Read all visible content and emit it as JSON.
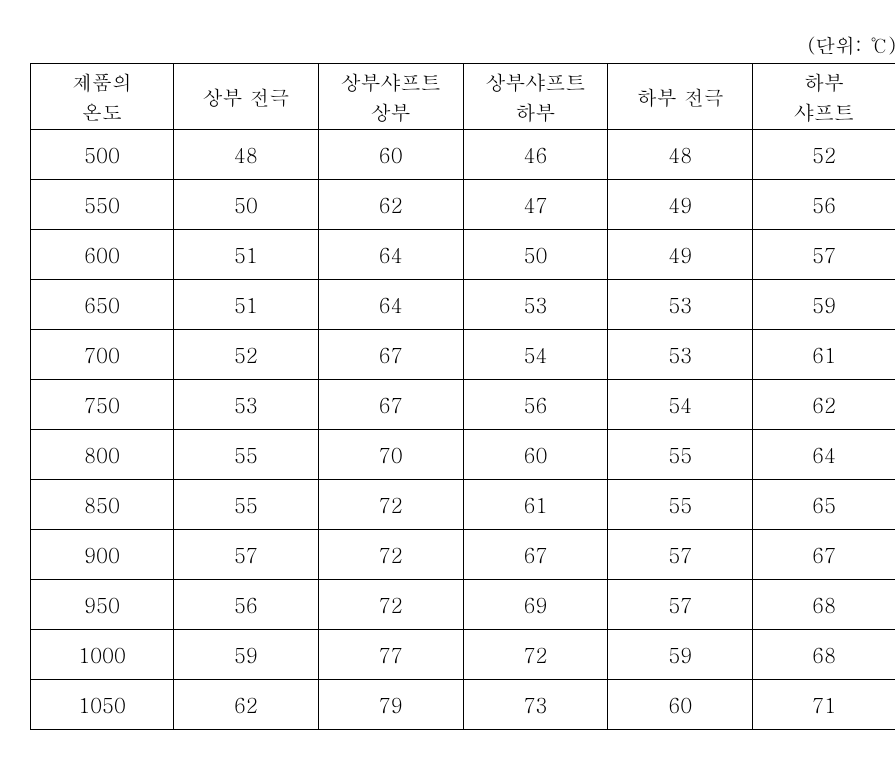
{
  "unit_label": "(단위: ℃)",
  "table": {
    "columns": [
      {
        "line1": "제품의",
        "line2": "온도"
      },
      {
        "line1": "상부 전극",
        "line2": ""
      },
      {
        "line1": "상부샤프트",
        "line2": "상부"
      },
      {
        "line1": "상부샤프트",
        "line2": "하부"
      },
      {
        "line1": "하부 전극",
        "line2": ""
      },
      {
        "line1": "하부",
        "line2": "샤프트"
      }
    ],
    "rows": [
      [
        "500",
        "48",
        "60",
        "46",
        "48",
        "52"
      ],
      [
        "550",
        "50",
        "62",
        "47",
        "49",
        "56"
      ],
      [
        "600",
        "51",
        "64",
        "50",
        "49",
        "57"
      ],
      [
        "650",
        "51",
        "64",
        "53",
        "53",
        "59"
      ],
      [
        "700",
        "52",
        "67",
        "54",
        "53",
        "61"
      ],
      [
        "750",
        "53",
        "67",
        "56",
        "54",
        "62"
      ],
      [
        "800",
        "55",
        "70",
        "60",
        "55",
        "64"
      ],
      [
        "850",
        "55",
        "72",
        "61",
        "55",
        "65"
      ],
      [
        "900",
        "57",
        "72",
        "67",
        "57",
        "67"
      ],
      [
        "950",
        "56",
        "72",
        "69",
        "57",
        "68"
      ],
      [
        "1000",
        "59",
        "77",
        "72",
        "59",
        "68"
      ],
      [
        "1050",
        "62",
        "79",
        "73",
        "60",
        "71"
      ]
    ],
    "border_color": "#000000",
    "background_color": "#ffffff",
    "text_color": "#000000",
    "header_fontsize": 20,
    "body_fontsize": 20
  }
}
